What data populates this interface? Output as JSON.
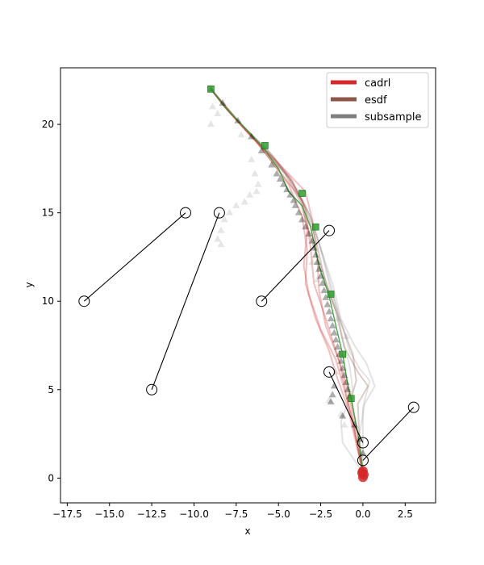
{
  "chart_data": {
    "type": "scatter",
    "title": "",
    "xlabel": "x",
    "ylabel": "y",
    "xlim": [
      -17.9,
      4.3
    ],
    "ylim": [
      -1.4,
      23.2
    ],
    "xticks": [
      -17.5,
      -15.0,
      -12.5,
      -10.0,
      -7.5,
      -5.0,
      -2.5,
      0.0,
      2.5
    ],
    "xtick_labels": [
      "−17.5",
      "−15.0",
      "−12.5",
      "−10.0",
      "−7.5",
      "−5.0",
      "−2.5",
      "0.0",
      "2.5"
    ],
    "yticks": [
      0,
      5,
      10,
      15,
      20
    ],
    "ytick_labels": [
      "0",
      "5",
      "10",
      "15",
      "20"
    ],
    "grid": false,
    "legend_position": "top-right",
    "legend": [
      {
        "label": "cadrl",
        "color": "#d62728"
      },
      {
        "label": "esdf",
        "color": "#8c564b"
      },
      {
        "label": "subsample",
        "color": "#7f7f7f"
      }
    ],
    "obstacle_segments": [
      {
        "from": [
          -16.5,
          10.0
        ],
        "to": [
          -10.5,
          15.0
        ]
      },
      {
        "from": [
          -12.5,
          5.0
        ],
        "to": [
          -8.5,
          15.0
        ]
      },
      {
        "from": [
          -6.0,
          10.0
        ],
        "to": [
          -2.0,
          14.0
        ]
      },
      {
        "from": [
          -2.0,
          6.0
        ],
        "to": [
          0.0,
          2.0
        ]
      },
      {
        "from": [
          3.0,
          4.0
        ],
        "to": [
          0.0,
          1.0
        ]
      }
    ],
    "trajectories": {
      "cadrl": [
        [
          [
            -9.0,
            22.0
          ],
          [
            -8.2,
            21.0
          ],
          [
            -6.8,
            19.5
          ],
          [
            -5.2,
            18.0
          ],
          [
            -4.2,
            16.8
          ],
          [
            -3.4,
            15.2
          ],
          [
            -3.1,
            13.0
          ],
          [
            -2.9,
            11.0
          ],
          [
            -2.3,
            9.3
          ],
          [
            -1.7,
            7.5
          ],
          [
            -1.2,
            6.0
          ],
          [
            -0.8,
            4.6
          ],
          [
            -0.4,
            2.3
          ],
          [
            0.0,
            0.3
          ]
        ],
        [
          [
            -9.0,
            22.0
          ],
          [
            -7.9,
            20.7
          ],
          [
            -6.3,
            19.0
          ],
          [
            -4.9,
            17.3
          ],
          [
            -3.6,
            15.7
          ],
          [
            -3.3,
            14.0
          ],
          [
            -3.5,
            12.0
          ],
          [
            -3.2,
            10.4
          ],
          [
            -2.5,
            8.4
          ],
          [
            -1.6,
            6.7
          ],
          [
            -1.1,
            5.0
          ],
          [
            -0.6,
            3.2
          ],
          [
            0.0,
            0.3
          ]
        ],
        [
          [
            -9.0,
            22.0
          ],
          [
            -8.1,
            20.9
          ],
          [
            -6.5,
            19.2
          ],
          [
            -5.0,
            17.8
          ],
          [
            -3.4,
            16.2
          ],
          [
            -3.0,
            14.6
          ],
          [
            -2.7,
            12.4
          ],
          [
            -2.6,
            10.6
          ],
          [
            -2.2,
            8.6
          ],
          [
            -1.4,
            6.6
          ],
          [
            -1.0,
            4.8
          ],
          [
            -0.5,
            2.6
          ],
          [
            0.0,
            0.3
          ]
        ],
        [
          [
            -9.0,
            22.0
          ],
          [
            -8.0,
            20.8
          ],
          [
            -6.6,
            19.4
          ],
          [
            -5.4,
            17.9
          ],
          [
            -4.4,
            16.6
          ],
          [
            -3.6,
            14.8
          ],
          [
            -3.3,
            12.9
          ],
          [
            -3.4,
            11.0
          ],
          [
            -2.8,
            9.0
          ],
          [
            -2.0,
            7.2
          ],
          [
            -1.5,
            5.6
          ],
          [
            -0.9,
            4.0
          ],
          [
            0.0,
            0.3
          ]
        ]
      ],
      "esdf": [
        [
          [
            -9.0,
            22.0
          ],
          [
            -7.5,
            20.3
          ],
          [
            -5.8,
            18.5
          ],
          [
            -4.4,
            17.0
          ],
          [
            -3.5,
            15.5
          ],
          [
            -2.8,
            13.5
          ],
          [
            -2.2,
            11.0
          ],
          [
            -1.4,
            9.0
          ],
          [
            -0.6,
            7.0
          ],
          [
            -0.4,
            5.5
          ],
          [
            -0.7,
            4.5
          ],
          [
            -0.3,
            2.5
          ],
          [
            0.0,
            0.3
          ]
        ],
        [
          [
            -9.0,
            22.0
          ],
          [
            -7.7,
            20.5
          ],
          [
            -6.0,
            18.8
          ],
          [
            -4.6,
            17.2
          ],
          [
            -3.7,
            15.6
          ],
          [
            -3.1,
            13.6
          ],
          [
            -2.3,
            11.4
          ],
          [
            -1.6,
            9.4
          ],
          [
            -1.1,
            7.4
          ],
          [
            -0.3,
            6.0
          ],
          [
            0.3,
            5.2
          ],
          [
            -0.3,
            4.2
          ],
          [
            -0.2,
            2.0
          ],
          [
            0.0,
            0.3
          ]
        ]
      ],
      "subsample": [
        [
          [
            -9.0,
            22.0
          ],
          [
            -7.2,
            20.0
          ],
          [
            -5.5,
            18.4
          ],
          [
            -4.2,
            16.8
          ],
          [
            -3.2,
            15.0
          ],
          [
            -2.5,
            13.0
          ],
          [
            -1.8,
            11.0
          ],
          [
            -1.3,
            9.0
          ],
          [
            -0.5,
            7.5
          ],
          [
            0.2,
            6.5
          ],
          [
            0.7,
            5.2
          ],
          [
            0.1,
            4.2
          ],
          [
            -0.2,
            2.5
          ],
          [
            0.0,
            0.3
          ]
        ],
        [
          [
            -9.0,
            22.0
          ],
          [
            -7.4,
            20.2
          ],
          [
            -5.7,
            18.6
          ],
          [
            -4.3,
            17.0
          ],
          [
            -3.3,
            15.2
          ],
          [
            -2.6,
            13.3
          ],
          [
            -2.0,
            11.3
          ],
          [
            -1.5,
            9.4
          ],
          [
            -1.2,
            7.8
          ],
          [
            -0.8,
            6.4
          ],
          [
            -0.6,
            5.0
          ],
          [
            -1.3,
            3.2
          ],
          [
            -1.2,
            2.0
          ],
          [
            0.0,
            0.3
          ]
        ],
        [
          [
            -9.0,
            22.0
          ],
          [
            -7.0,
            19.8
          ],
          [
            -5.3,
            18.2
          ],
          [
            -4.0,
            16.4
          ],
          [
            -3.0,
            14.6
          ],
          [
            -2.4,
            12.6
          ],
          [
            -1.9,
            10.6
          ],
          [
            -1.2,
            8.6
          ],
          [
            -0.8,
            7.2
          ],
          [
            -0.2,
            6.2
          ],
          [
            0.4,
            5.5
          ],
          [
            0.0,
            4.0
          ],
          [
            0.0,
            2.2
          ],
          [
            0.0,
            0.3
          ]
        ]
      ]
    },
    "reference_path": [
      [
        -9.0,
        22.0
      ],
      [
        -8.2,
        21.0
      ],
      [
        -7.0,
        19.8
      ],
      [
        -6.0,
        18.8
      ],
      [
        -5.0,
        17.5
      ],
      [
        -4.4,
        16.2
      ],
      [
        -3.6,
        15.4
      ],
      [
        -3.1,
        14.2
      ],
      [
        -2.6,
        12.0
      ],
      [
        -2.0,
        10.3
      ],
      [
        -1.6,
        8.6
      ],
      [
        -1.2,
        7.0
      ],
      [
        -0.9,
        5.3
      ],
      [
        -0.7,
        4.5
      ],
      [
        -0.3,
        2.5
      ],
      [
        0.0,
        0.3
      ]
    ],
    "square_markers": [
      [
        -9.0,
        22.0
      ],
      [
        -5.8,
        18.8
      ],
      [
        -3.6,
        16.1
      ],
      [
        -2.8,
        14.2
      ],
      [
        -1.9,
        10.4
      ],
      [
        -1.2,
        7.0
      ],
      [
        -0.7,
        4.5
      ]
    ],
    "triangle_markers_dark": [
      [
        -9.0,
        22.0
      ],
      [
        -8.3,
        21.2
      ],
      [
        -7.4,
        20.2
      ],
      [
        -6.6,
        19.3
      ],
      [
        -6.0,
        18.5
      ],
      [
        -5.4,
        17.7
      ],
      [
        -5.1,
        17.2
      ],
      [
        -4.9,
        16.9
      ],
      [
        -4.7,
        16.6
      ],
      [
        -4.5,
        16.3
      ],
      [
        -4.3,
        16.0
      ],
      [
        -4.1,
        15.7
      ],
      [
        -4.0,
        15.4
      ],
      [
        -3.8,
        15.0
      ],
      [
        -3.6,
        14.6
      ],
      [
        -3.4,
        14.2
      ],
      [
        -3.2,
        13.8
      ],
      [
        -3.0,
        13.4
      ],
      [
        -2.9,
        13.0
      ],
      [
        -2.8,
        12.6
      ],
      [
        -2.7,
        12.2
      ],
      [
        -2.6,
        11.8
      ],
      [
        -2.5,
        11.4
      ],
      [
        -2.4,
        11.0
      ],
      [
        -2.3,
        10.6
      ],
      [
        -2.2,
        10.2
      ],
      [
        -2.1,
        9.8
      ],
      [
        -2.0,
        9.4
      ],
      [
        -1.9,
        9.0
      ],
      [
        -1.8,
        8.6
      ],
      [
        -1.7,
        8.2
      ],
      [
        -1.6,
        7.8
      ],
      [
        -1.5,
        7.4
      ],
      [
        -1.4,
        7.0
      ],
      [
        -1.3,
        6.6
      ],
      [
        -1.2,
        6.2
      ],
      [
        -1.1,
        5.8
      ],
      [
        -1.0,
        5.4
      ],
      [
        -0.9,
        5.0
      ],
      [
        -0.8,
        4.6
      ],
      [
        -1.7,
        5.2
      ],
      [
        -1.8,
        4.7
      ],
      [
        -1.9,
        4.3
      ],
      [
        -1.2,
        3.5
      ],
      [
        -0.5,
        3.0
      ],
      [
        -0.2,
        2.2
      ],
      [
        0.0,
        1.4
      ]
    ],
    "triangle_markers_light": [
      [
        -8.9,
        21.0
      ],
      [
        -9.0,
        20.0
      ],
      [
        -8.6,
        20.6
      ],
      [
        -7.2,
        19.4
      ],
      [
        -6.6,
        18.0
      ],
      [
        -6.4,
        17.2
      ],
      [
        -6.2,
        16.6
      ],
      [
        -6.3,
        16.2
      ],
      [
        -6.7,
        16.0
      ],
      [
        -7.0,
        15.6
      ],
      [
        -7.5,
        15.4
      ],
      [
        -7.9,
        15.0
      ],
      [
        -8.2,
        14.6
      ],
      [
        -8.4,
        14.0
      ],
      [
        -8.4,
        13.2
      ],
      [
        -8.6,
        13.5
      ],
      [
        -3.0,
        12.2
      ],
      [
        -2.7,
        11.2
      ],
      [
        -1.5,
        9.0
      ],
      [
        -1.0,
        8.0
      ],
      [
        -1.6,
        6.0
      ],
      [
        -2.0,
        4.4
      ],
      [
        -1.1,
        3.0
      ],
      [
        -1.3,
        3.6
      ]
    ],
    "agent_marks": [
      [
        -10.5,
        15.0
      ],
      [
        -16.5,
        10.0
      ],
      [
        -8.5,
        15.0
      ],
      [
        -12.5,
        5.0
      ],
      [
        -2.0,
        14.0
      ],
      [
        -6.0,
        10.0
      ],
      [
        -2.0,
        6.0
      ],
      [
        0.0,
        2.0
      ],
      [
        0.0,
        1.0
      ],
      [
        3.0,
        4.0
      ]
    ],
    "goal_dots": [
      [
        0.0,
        0.4
      ],
      [
        0.05,
        0.2
      ],
      [
        0.0,
        0.05
      ],
      [
        -0.05,
        0.3
      ]
    ]
  }
}
